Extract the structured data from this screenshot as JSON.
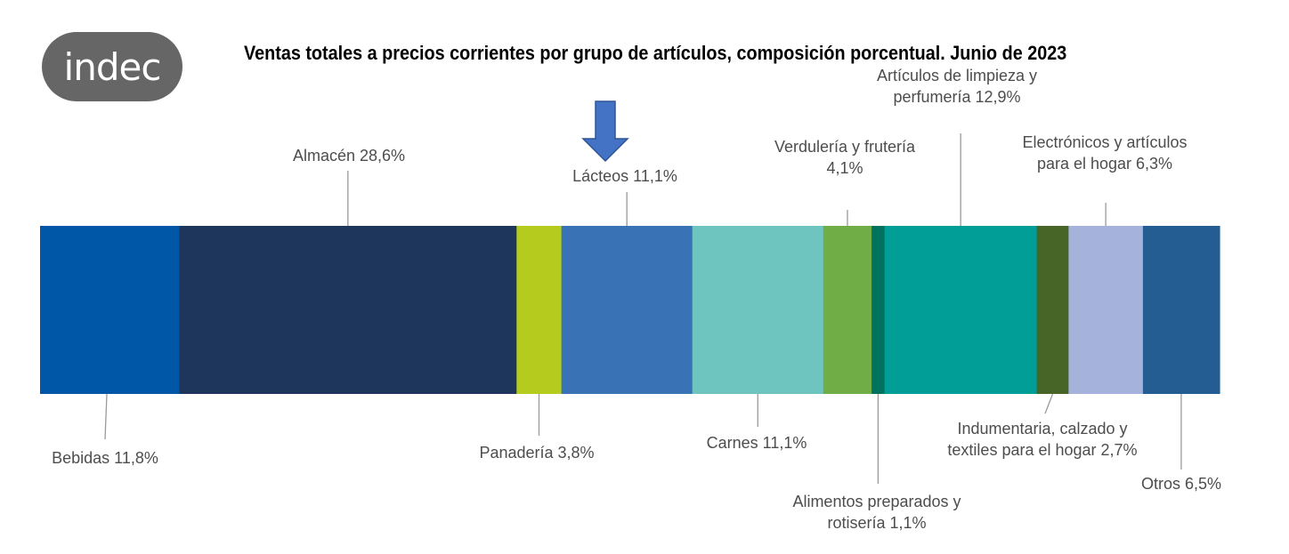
{
  "logo": {
    "text": "indec"
  },
  "chart_data": {
    "type": "bar",
    "stacked": true,
    "orientation": "horizontal",
    "title": "Ventas totales a precios corrientes por grupo de artículos, composición porcentual. Junio de 2023",
    "unit": "%",
    "total": 100,
    "segments": [
      {
        "name": "Bebidas",
        "value": 11.8,
        "label_lines": [
          "Bebidas 11,8%"
        ],
        "side": "below",
        "color": "#0057a8"
      },
      {
        "name": "Almacén",
        "value": 28.6,
        "label_lines": [
          "Almacén 28,6%"
        ],
        "side": "above",
        "color": "#1f365c"
      },
      {
        "name": "Panadería",
        "value": 3.8,
        "label_lines": [
          "Panadería 3,8%"
        ],
        "side": "below",
        "color": "#b5cc1f"
      },
      {
        "name": "Lácteos",
        "value": 11.1,
        "label_lines": [
          "Lácteos 11,1%"
        ],
        "side": "above",
        "color": "#3a73b5",
        "highlighted": true
      },
      {
        "name": "Carnes",
        "value": 11.1,
        "label_lines": [
          "Carnes 11,1%"
        ],
        "side": "below",
        "color": "#6ec4be"
      },
      {
        "name": "Verdulería y frutería",
        "value": 4.1,
        "label_lines": [
          "Verdulería y frutería",
          "4,1%"
        ],
        "side": "above",
        "color": "#70ad47"
      },
      {
        "name": "Alimentos preparados y rotisería",
        "value": 1.1,
        "label_lines": [
          "Alimentos preparados y",
          "rotisería 1,1%"
        ],
        "side": "below",
        "color": "#00735f"
      },
      {
        "name": "Artículos de limpieza y perfumería",
        "value": 12.9,
        "label_lines": [
          "Artículos de limpieza y",
          "perfumería 12,9%"
        ],
        "side": "above",
        "color": "#009e96"
      },
      {
        "name": "Indumentaria, calzado y textiles para el hogar",
        "value": 2.7,
        "label_lines": [
          "Indumentaria, calzado y",
          "textiles para el hogar 2,7%"
        ],
        "side": "below",
        "color": "#476526"
      },
      {
        "name": "Electrónicos y artículos para el hogar",
        "value": 6.3,
        "label_lines": [
          "Electrónicos y artículos",
          "para el hogar 6,3%"
        ],
        "side": "above",
        "color": "#a5b3dc"
      },
      {
        "name": "Otros",
        "value": 6.5,
        "label_lines": [
          "Otros 6,5%"
        ],
        "side": "below",
        "color": "#235d92"
      }
    ],
    "arrow": {
      "points_to": "Lácteos",
      "color": "#4472c4"
    }
  }
}
